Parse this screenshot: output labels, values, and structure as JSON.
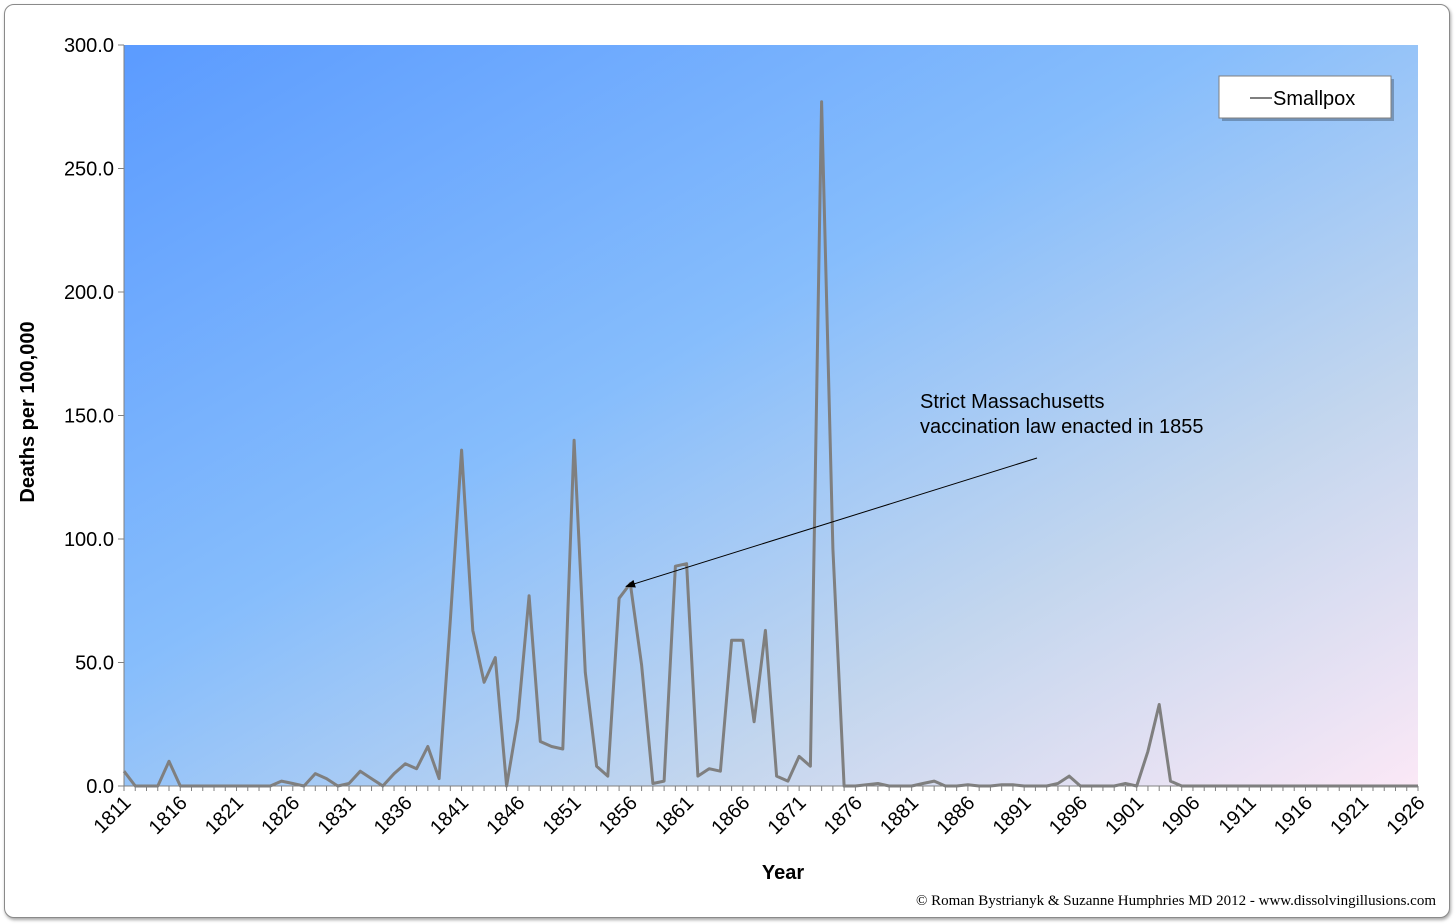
{
  "chart_data": {
    "type": "line",
    "title": "",
    "xlabel": "Year",
    "ylabel": "Deaths per 100,000",
    "ylim": [
      0,
      300
    ],
    "ytick_values": [
      0,
      50,
      100,
      150,
      200,
      250,
      300
    ],
    "ytick_labels": [
      "0.0",
      "50.0",
      "100.0",
      "150.0",
      "200.0",
      "250.0",
      "300.0"
    ],
    "xtick_labels": [
      "1811",
      "1816",
      "1821",
      "1826",
      "1831",
      "1836",
      "1841",
      "1846",
      "1851",
      "1856",
      "1861",
      "1866",
      "1871",
      "1876",
      "1881",
      "1886",
      "1891",
      "1896",
      "1901",
      "1906",
      "1911",
      "1916",
      "1921",
      "1926"
    ],
    "x_start": 1811,
    "x_end": 1926,
    "series": [
      {
        "name": "Smallpox",
        "color": "#7f7f7f",
        "x": [
          1811,
          1812,
          1813,
          1814,
          1815,
          1816,
          1817,
          1818,
          1819,
          1820,
          1821,
          1822,
          1823,
          1824,
          1825,
          1826,
          1827,
          1828,
          1829,
          1830,
          1831,
          1832,
          1833,
          1834,
          1835,
          1836,
          1837,
          1838,
          1839,
          1840,
          1841,
          1842,
          1843,
          1844,
          1845,
          1846,
          1847,
          1848,
          1849,
          1850,
          1851,
          1852,
          1853,
          1854,
          1855,
          1856,
          1857,
          1858,
          1859,
          1860,
          1861,
          1862,
          1863,
          1864,
          1865,
          1866,
          1867,
          1868,
          1869,
          1870,
          1871,
          1872,
          1873,
          1874,
          1875,
          1876,
          1877,
          1878,
          1879,
          1880,
          1881,
          1882,
          1883,
          1884,
          1885,
          1886,
          1887,
          1888,
          1889,
          1890,
          1891,
          1892,
          1893,
          1894,
          1895,
          1896,
          1897,
          1898,
          1899,
          1900,
          1901,
          1902,
          1903,
          1904,
          1905,
          1906,
          1907,
          1908,
          1909,
          1910,
          1911,
          1912,
          1913,
          1914,
          1915,
          1916,
          1917,
          1918,
          1919,
          1920,
          1921,
          1922,
          1923,
          1924,
          1925,
          1926
        ],
        "values": [
          6.0,
          0.0,
          0.0,
          0.0,
          10.0,
          0.0,
          0.0,
          0.0,
          0.0,
          0.0,
          0.0,
          0.0,
          0.0,
          0.0,
          2.0,
          1.0,
          0.0,
          5.0,
          3.0,
          0.0,
          1.0,
          6.0,
          3.0,
          0.0,
          5.0,
          9.0,
          7.0,
          16.0,
          3.0,
          67.0,
          136.0,
          63.0,
          42.0,
          52.0,
          0.0,
          27.0,
          77.0,
          18.0,
          16.0,
          15.0,
          140.0,
          46.0,
          8.0,
          4.0,
          76.0,
          82.0,
          49.0,
          1.0,
          2.0,
          89.0,
          90.0,
          4.0,
          7.0,
          6.0,
          59.0,
          59.0,
          26.0,
          63.0,
          4.0,
          2.0,
          12.0,
          8.0,
          277.0,
          96.0,
          0.0,
          0.0,
          0.5,
          1.0,
          0.0,
          0.0,
          0.0,
          1.0,
          2.0,
          0.0,
          0.0,
          0.5,
          0.0,
          0.0,
          0.5,
          0.5,
          0.0,
          0.0,
          0.0,
          1.0,
          4.0,
          0.0,
          0.0,
          0.0,
          0.0,
          1.0,
          0.0,
          14.0,
          33.0,
          2.0,
          0.0,
          0.0,
          0.0,
          0.0,
          0.0,
          0.0,
          0.0,
          0.0,
          0.0,
          0.0,
          0.0,
          0.0,
          0.0,
          0.0,
          0.0,
          0.0,
          0.0,
          0.0,
          0.0,
          0.0,
          0.0,
          0.0
        ]
      }
    ],
    "legend": {
      "entries": [
        "Smallpox"
      ],
      "placement": "top-right"
    },
    "annotations": [
      {
        "lines": [
          "Strict Massachusetts",
          "vaccination law enacted in 1855"
        ],
        "points_to_year": 1855,
        "points_to_value": 80
      }
    ],
    "grid": false,
    "plot_background": "gradient: #5b9bff (top-left) to #fbe9f7 (bottom-right)"
  },
  "credit": "© Roman Bystrianyk & Suzanne Humphries MD 2012 - www.dissolvingillusions.com",
  "colors": {
    "line": "#7f7f7f",
    "gradient_start": "#5b9bff",
    "gradient_mid": "#86bdfc",
    "gradient_end": "#fbe8f6"
  }
}
